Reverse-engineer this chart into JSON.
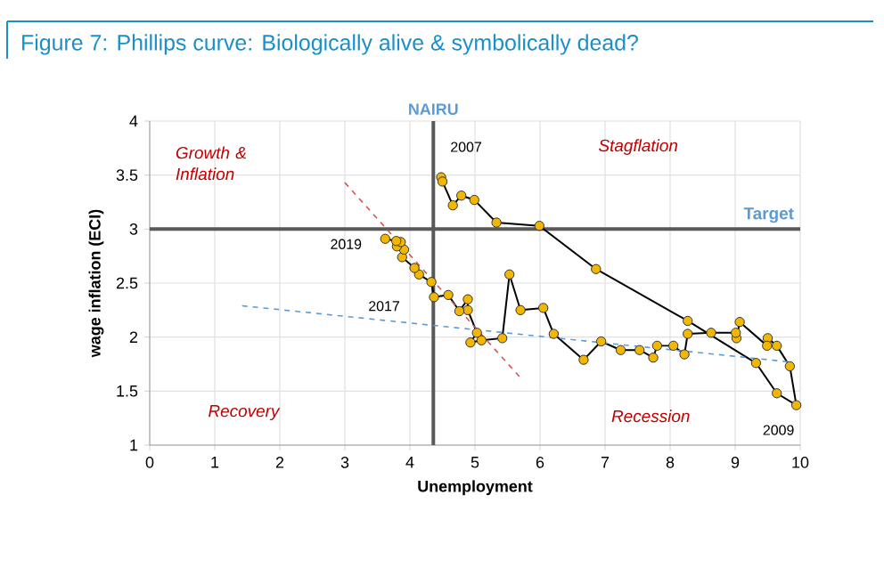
{
  "chart_data": {
    "type": "line",
    "title": "Figure 7: Phillips curve: Biologically alive & symbolically dead?",
    "xlabel": "Unemployment",
    "ylabel": "wage inflation (ECI)",
    "xlim": [
      0,
      10
    ],
    "xticks": [
      0,
      1,
      2,
      3,
      4,
      5,
      6,
      7,
      8,
      9,
      10
    ],
    "ylim": [
      1,
      4
    ],
    "yticks": [
      1,
      1.5,
      2,
      2.5,
      3,
      3.5,
      4
    ],
    "grid": true,
    "series": [
      {
        "color": "#f2b705",
        "marker": "circle",
        "x": [
          4.48,
          4.5,
          4.66,
          4.79,
          4.99,
          5.33,
          5.99,
          6.86,
          8.27,
          9.32,
          9.64,
          9.94,
          9.84,
          9.64,
          9.5,
          9.49,
          9.07,
          9.02,
          9.01,
          8.63,
          8.27,
          8.22,
          8.05,
          7.8,
          7.74,
          7.53,
          7.24,
          6.94,
          6.67,
          6.21,
          6.05,
          5.7,
          5.53,
          5.42,
          5.1,
          4.93,
          5.03,
          4.89,
          4.89,
          4.76,
          4.59,
          4.37,
          4.33,
          4.14,
          4.07,
          3.88,
          3.91,
          3.8,
          3.86,
          3.79,
          3.62
        ],
        "values": [
          3.48,
          3.44,
          3.22,
          3.31,
          3.27,
          3.06,
          3.03,
          2.63,
          2.15,
          1.76,
          1.48,
          1.37,
          1.73,
          1.92,
          1.99,
          1.92,
          2.14,
          1.99,
          2.04,
          2.04,
          2.03,
          1.84,
          1.92,
          1.92,
          1.81,
          1.88,
          1.88,
          1.96,
          1.79,
          2.03,
          2.27,
          2.25,
          2.58,
          1.99,
          1.97,
          1.95,
          2.04,
          2.25,
          2.35,
          2.24,
          2.39,
          2.37,
          2.51,
          2.58,
          2.64,
          2.74,
          2.81,
          2.84,
          2.88,
          2.89,
          2.91
        ]
      },
      {
        "type": "line",
        "color": "#5b9bd5",
        "marker": "none",
        "line_style": "dashed",
        "x": [
          1.42,
          9.84
        ],
        "values": [
          2.29,
          1.77
        ]
      },
      {
        "type": "line",
        "color": "#d9534f",
        "marker": "none",
        "line_style": "dashed",
        "x": [
          3.0,
          5.69
        ],
        "values": [
          3.43,
          1.63
        ]
      }
    ],
    "ref_lines": [
      {
        "axis": "x",
        "value": 4.36,
        "label": "NAIRU",
        "color": "#595959"
      },
      {
        "axis": "y",
        "value": 3,
        "label": "Target",
        "color": "#595959"
      }
    ],
    "annotations": [
      "Growth & Inflation",
      "Stagflation",
      "Recovery",
      "Recession",
      {
        "text": "2007",
        "x": 4.48,
        "y": 3.48
      },
      {
        "text": "2009",
        "x": 9.94,
        "y": 1.37
      },
      {
        "text": "2017",
        "x": 4.37,
        "y": 2.37
      },
      {
        "text": "2019",
        "x": 3.62,
        "y": 2.91
      }
    ]
  }
}
